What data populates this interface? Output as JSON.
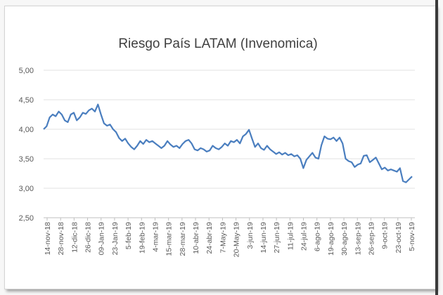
{
  "chart_data": {
    "type": "line",
    "title": "Riesgo País LATAM (Invenomica)",
    "xlabel": "",
    "ylabel": "",
    "ylim": [
      2.5,
      5.0
    ],
    "y_ticks": [
      "2,50",
      "3,00",
      "3,50",
      "4,00",
      "4,50",
      "5,00"
    ],
    "x_ticks": [
      "14-nov-18",
      "28-nov-18",
      "12-dic-18",
      "26-dic-18",
      "09-Jan-19",
      "23-Jan-19",
      "5-feb-19",
      "19-feb-19",
      "4-mar-19",
      "15-mar-19",
      "28-mar-19",
      "10-abr-19",
      "24-abr-19",
      "7-May-19",
      "20-May-19",
      "3-jun-19",
      "14-jun-19",
      "27-jun-19",
      "11-jul-19",
      "24-jul-19",
      "6-ago-19",
      "19-ago-19",
      "30-ago-19",
      "13-sep-19",
      "26-sep-19",
      "9-oct-19",
      "23-oct-19",
      "5-nov-19"
    ],
    "grid": true,
    "legend": "none",
    "line_color": "#4a7ebf",
    "series": [
      {
        "values": [
          4.0,
          4.05,
          4.2,
          4.25,
          4.22,
          4.3,
          4.25,
          4.15,
          4.12,
          4.25,
          4.28,
          4.15,
          4.2,
          4.28,
          4.26,
          4.32,
          4.35,
          4.3,
          4.42,
          4.25,
          4.1,
          4.06,
          4.08,
          4.0,
          3.95,
          3.85,
          3.8,
          3.84,
          3.76,
          3.7,
          3.66,
          3.72,
          3.8,
          3.75,
          3.82,
          3.78,
          3.8,
          3.76,
          3.72,
          3.68,
          3.72,
          3.8,
          3.74,
          3.7,
          3.72,
          3.68,
          3.75,
          3.8,
          3.82,
          3.76,
          3.66,
          3.64,
          3.68,
          3.66,
          3.62,
          3.64,
          3.72,
          3.68,
          3.66,
          3.7,
          3.76,
          3.72,
          3.8,
          3.78,
          3.82,
          3.76,
          3.88,
          3.92,
          3.99,
          3.84,
          3.7,
          3.76,
          3.68,
          3.65,
          3.72,
          3.66,
          3.62,
          3.58,
          3.61,
          3.57,
          3.6,
          3.56,
          3.58,
          3.54,
          3.56,
          3.5,
          3.34,
          3.48,
          3.54,
          3.6,
          3.52,
          3.5,
          3.73,
          3.88,
          3.84,
          3.83,
          3.86,
          3.8,
          3.86,
          3.76,
          3.5,
          3.46,
          3.44,
          3.36,
          3.4,
          3.42,
          3.55,
          3.56,
          3.44,
          3.48,
          3.52,
          3.42,
          3.32,
          3.35,
          3.3,
          3.32,
          3.3,
          3.28,
          3.34,
          3.12,
          3.1,
          3.15,
          3.2
        ]
      }
    ]
  }
}
